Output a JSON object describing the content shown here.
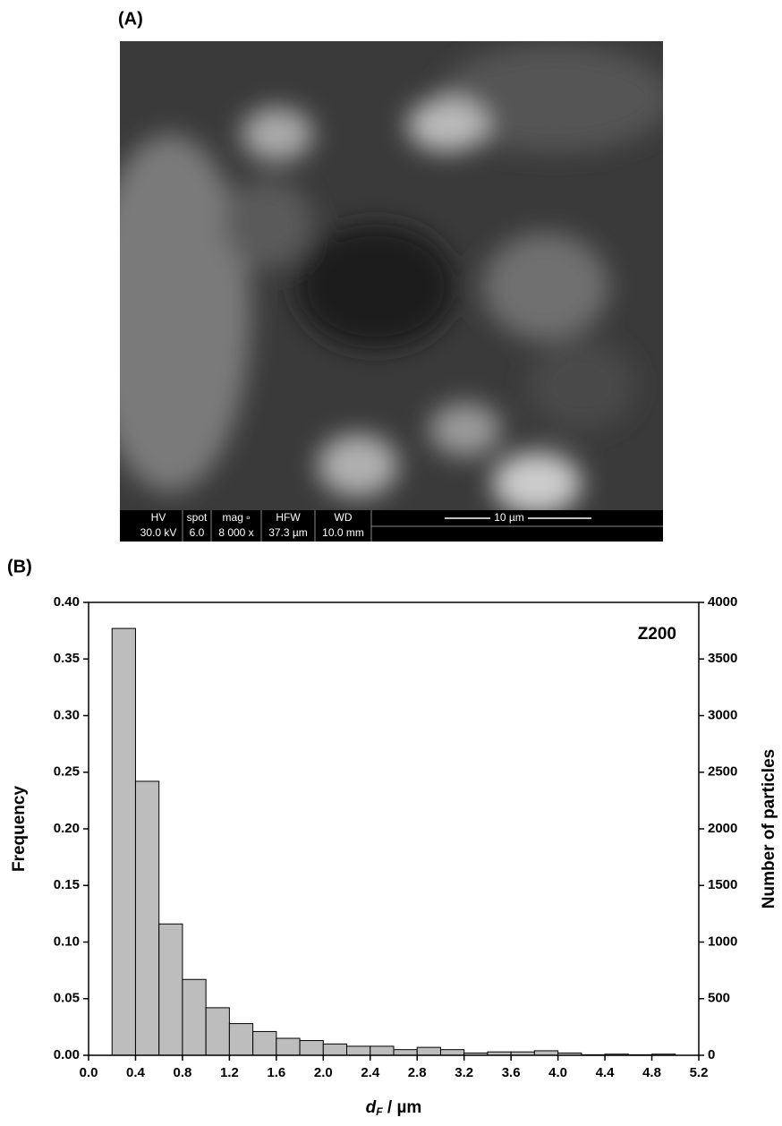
{
  "panel_labels": [
    "(A)",
    "(B)"
  ],
  "sem_bar": {
    "cells": [
      [
        "HV",
        "30.0 kV"
      ],
      [
        "spot",
        "6.0"
      ],
      [
        "mag ▫",
        "8 000 x"
      ],
      [
        "HFW",
        "37.3 µm"
      ],
      [
        "WD",
        "10.0 mm"
      ]
    ],
    "scale": "10 µm"
  },
  "chart_data": {
    "type": "histogram",
    "annotation": "Z200",
    "xlabel_parts": [
      "d",
      "F",
      " / µm"
    ],
    "ylabel": "Frequency",
    "y2label": "Number of particles",
    "color": "#bdbdbd",
    "bins": [
      0.2,
      0.4,
      0.6,
      0.8,
      1.0,
      1.2,
      1.4,
      1.6,
      1.8,
      2.0,
      2.2,
      2.4,
      2.6,
      2.8,
      3.0,
      3.2,
      3.4,
      3.6,
      3.8,
      4.0,
      4.2,
      4.4,
      4.6,
      4.8,
      5.0
    ],
    "values": [
      0.377,
      0.242,
      0.116,
      0.067,
      0.042,
      0.028,
      0.021,
      0.015,
      0.013,
      0.01,
      0.008,
      0.008,
      0.005,
      0.007,
      0.005,
      0.002,
      0.003,
      0.003,
      0.004,
      0.002,
      0.0005,
      0.001,
      0.0005,
      0.001
    ],
    "xlim": [
      0,
      5.2
    ],
    "xticks": [
      {
        "value": 0,
        "label": "0.0"
      },
      0.4,
      0.8,
      1.2,
      1.6,
      {
        "value": 2,
        "label": "2.0"
      },
      2.4,
      2.8,
      3.2,
      3.6,
      {
        "value": 4,
        "label": "4.0"
      },
      4.4,
      4.8,
      5.2
    ],
    "ylim": [
      0,
      0.4
    ],
    "yticks": [
      {
        "value": 0,
        "label": "0.00"
      },
      0.05,
      {
        "value": 0.1,
        "label": "0.10"
      },
      0.15,
      {
        "value": 0.2,
        "label": "0.20"
      },
      0.25,
      {
        "value": 0.3,
        "label": "0.30"
      },
      0.35,
      {
        "value": 0.4,
        "label": "0.40"
      }
    ],
    "y2lim": [
      0,
      4000
    ],
    "y2ticks": [
      0,
      500,
      1000,
      1500,
      2000,
      2500,
      3000,
      3500,
      4000
    ]
  }
}
